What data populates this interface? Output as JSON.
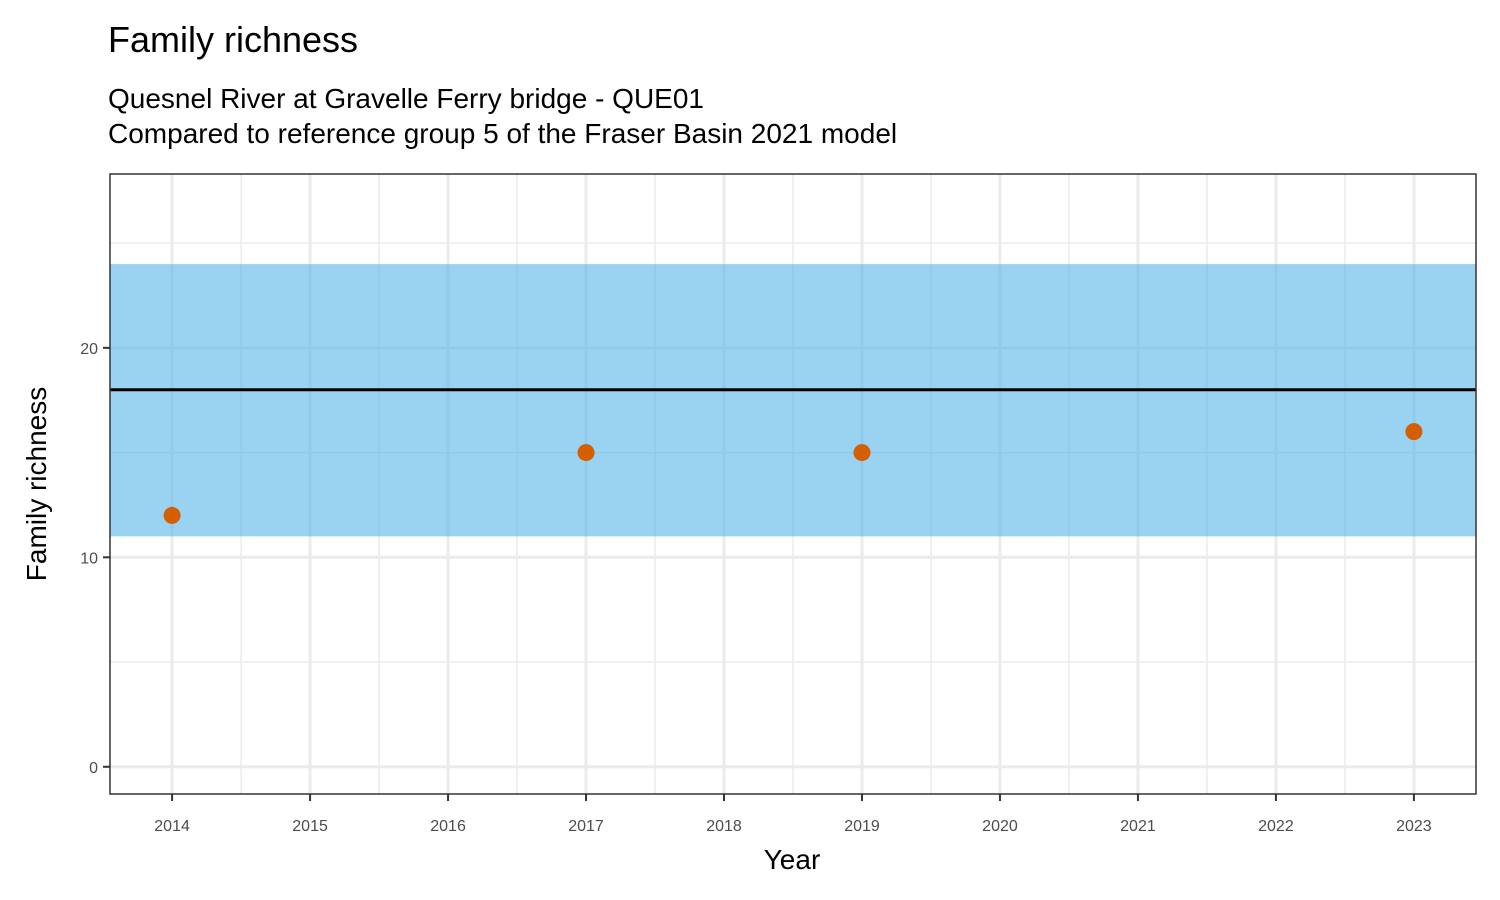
{
  "chart_data": {
    "type": "scatter",
    "title": "Family richness",
    "subtitle_lines": [
      "Quesnel River at Gravelle Ferry bridge - QUE01",
      "Compared to reference group 5 of the Fraser Basin 2021 model"
    ],
    "xlabel": "Year",
    "ylabel": "Family richness",
    "x_ticks": [
      "2014",
      "2015",
      "2016",
      "2017",
      "2018",
      "2019",
      "2020",
      "2021",
      "2022",
      "2023"
    ],
    "y_ticks": [
      "0",
      "10",
      "20"
    ],
    "xlim": [
      2013.55,
      2023.45
    ],
    "ylim": [
      -1.3,
      28.3
    ],
    "grid": true,
    "reference_band": {
      "low": 11,
      "high": 24,
      "color": "#56B4E9"
    },
    "reference_line": {
      "value": 18,
      "color": "#000000"
    },
    "series": [
      {
        "color": "#D55E00",
        "points": [
          {
            "x": 2014,
            "y": 12
          },
          {
            "x": 2017,
            "y": 15
          },
          {
            "x": 2019,
            "y": 15
          },
          {
            "x": 2023,
            "y": 16
          }
        ]
      }
    ]
  }
}
